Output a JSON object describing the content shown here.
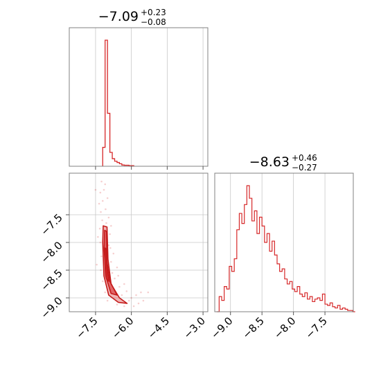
{
  "chart_data": [
    {
      "type": "histogram",
      "panel": "marginal-param-1",
      "title_value": "−7.09",
      "title_plus": "+0.23",
      "title_minus": "−0.08",
      "xlim": [
        -8.6,
        -2.8
      ],
      "grid": true,
      "color": "#d62728",
      "bins": [
        {
          "x0": -7.2,
          "x1": -7.1,
          "count": 0.15
        },
        {
          "x0": -7.1,
          "x1": -7.0,
          "count": 1.0
        },
        {
          "x0": -7.0,
          "x1": -6.9,
          "count": 0.42
        },
        {
          "x0": -6.9,
          "x1": -6.8,
          "count": 0.11
        },
        {
          "x0": -6.8,
          "x1": -6.7,
          "count": 0.06
        },
        {
          "x0": -6.7,
          "x1": -6.6,
          "count": 0.04
        },
        {
          "x0": -6.6,
          "x1": -6.5,
          "count": 0.03
        },
        {
          "x0": -6.5,
          "x1": -6.4,
          "count": 0.02
        },
        {
          "x0": -6.4,
          "x1": -6.3,
          "count": 0.01
        },
        {
          "x0": -6.3,
          "x1": -6.1,
          "count": 0.008
        },
        {
          "x0": -6.1,
          "x1": -5.9,
          "count": 0.005
        }
      ]
    },
    {
      "type": "scatter",
      "panel": "joint-param-1-vs-param-2",
      "xlim": [
        -8.6,
        -2.8
      ],
      "ylim": [
        -9.25,
        -6.75
      ],
      "xticks": [
        -7.5,
        -6.0,
        -4.5,
        -3.0
      ],
      "xtick_labels": [
        "−7.5",
        "−6.0",
        "−4.5",
        "−3.0"
      ],
      "yticks": [
        -7.5,
        -8.0,
        -8.5,
        -9.0
      ],
      "ytick_labels": [
        "−7.5",
        "−8.0",
        "−8.5",
        "−9.0"
      ],
      "grid": true,
      "color": "#d62728",
      "contours": [
        [
          [
            -7.18,
            -7.7
          ],
          [
            -7.02,
            -7.72
          ],
          [
            -6.98,
            -8.3
          ],
          [
            -6.85,
            -8.75
          ],
          [
            -6.5,
            -9.0
          ],
          [
            -6.18,
            -9.1
          ],
          [
            -6.55,
            -9.08
          ],
          [
            -6.95,
            -8.95
          ],
          [
            -7.15,
            -8.6
          ],
          [
            -7.2,
            -8.0
          ],
          [
            -7.18,
            -7.7
          ]
        ],
        [
          [
            -7.12,
            -7.78
          ],
          [
            -7.04,
            -7.8
          ],
          [
            -7.02,
            -8.35
          ],
          [
            -6.9,
            -8.7
          ],
          [
            -6.6,
            -8.95
          ],
          [
            -6.85,
            -8.92
          ],
          [
            -7.08,
            -8.6
          ],
          [
            -7.14,
            -8.1
          ],
          [
            -7.12,
            -7.78
          ]
        ],
        [
          [
            -7.1,
            -8.1
          ],
          [
            -7.05,
            -8.12
          ],
          [
            -7.03,
            -8.45
          ],
          [
            -6.95,
            -8.7
          ],
          [
            -7.05,
            -8.65
          ],
          [
            -7.1,
            -8.4
          ],
          [
            -7.1,
            -8.1
          ]
        ]
      ],
      "points": [
        [
          -7.3,
          -7.1
        ],
        [
          -7.25,
          -6.9
        ],
        [
          -7.1,
          -6.95
        ],
        [
          -7.35,
          -7.3
        ],
        [
          -7.0,
          -7.2
        ],
        [
          -7.15,
          -7.05
        ],
        [
          -7.28,
          -7.45
        ],
        [
          -7.08,
          -7.4
        ],
        [
          -6.95,
          -7.55
        ],
        [
          -7.22,
          -7.6
        ],
        [
          -7.32,
          -7.75
        ],
        [
          -6.9,
          -7.85
        ],
        [
          -7.3,
          -8.0
        ],
        [
          -6.88,
          -8.1
        ],
        [
          -7.25,
          -8.25
        ],
        [
          -6.85,
          -8.35
        ],
        [
          -7.28,
          -8.5
        ],
        [
          -6.8,
          -8.55
        ],
        [
          -7.2,
          -8.7
        ],
        [
          -6.7,
          -8.65
        ],
        [
          -6.9,
          -8.85
        ],
        [
          -6.5,
          -8.8
        ],
        [
          -6.4,
          -8.95
        ],
        [
          -6.2,
          -8.88
        ],
        [
          -6.0,
          -9.0
        ],
        [
          -5.8,
          -8.95
        ],
        [
          -5.6,
          -8.9
        ],
        [
          -5.5,
          -9.05
        ],
        [
          -5.9,
          -9.15
        ],
        [
          -6.3,
          -9.15
        ],
        [
          -6.6,
          -9.12
        ],
        [
          -7.0,
          -9.05
        ],
        [
          -7.1,
          -8.9
        ],
        [
          -7.4,
          -7.9
        ],
        [
          -7.45,
          -8.4
        ],
        [
          -6.75,
          -8.2
        ],
        [
          -6.6,
          -8.45
        ],
        [
          -7.05,
          -7.65
        ],
        [
          -7.15,
          -8.15
        ],
        [
          -6.95,
          -8.05
        ],
        [
          -7.2,
          -7.25
        ],
        [
          -6.85,
          -7.7
        ],
        [
          -7.5,
          -7.05
        ],
        [
          -6.55,
          -8.6
        ],
        [
          -6.3,
          -8.75
        ],
        [
          -5.3,
          -8.9
        ],
        [
          -5.7,
          -9.1
        ],
        [
          -6.1,
          -9.05
        ]
      ]
    },
    {
      "type": "histogram",
      "panel": "marginal-param-2",
      "title_value": "−8.63",
      "title_plus": "+0.46",
      "title_minus": "−0.27",
      "xlim": [
        -9.25,
        -7.05
      ],
      "xticks": [
        -9.0,
        -8.5,
        -8.0,
        -7.5
      ],
      "xtick_labels": [
        "−9.0",
        "−8.5",
        "−8.0",
        "−7.5"
      ],
      "grid": true,
      "color": "#d62728",
      "counts": [
        0.0,
        0.12,
        0.09,
        0.2,
        0.18,
        0.36,
        0.32,
        0.42,
        0.65,
        0.78,
        0.7,
        0.85,
        1.0,
        0.9,
        0.72,
        0.8,
        0.62,
        0.75,
        0.68,
        0.55,
        0.62,
        0.48,
        0.56,
        0.45,
        0.38,
        0.32,
        0.34,
        0.26,
        0.22,
        0.24,
        0.18,
        0.16,
        0.2,
        0.14,
        0.12,
        0.15,
        0.1,
        0.12,
        0.08,
        0.1,
        0.11,
        0.09,
        0.14,
        0.06,
        0.05,
        0.07,
        0.04,
        0.03,
        0.05,
        0.02,
        0.03,
        0.02,
        0.01,
        0.01,
        0.0
      ],
      "bin_start": -9.22,
      "bin_width": 0.04
    }
  ]
}
